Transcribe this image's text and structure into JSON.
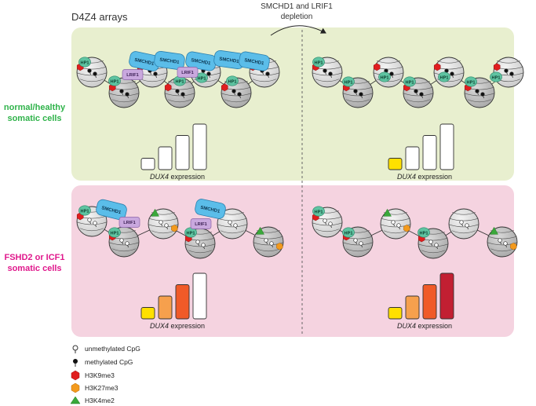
{
  "header": {
    "title": "D4Z4 arrays",
    "arrow_line1": "SMCHD1 and LRIF1",
    "arrow_line2": "depletion"
  },
  "rows": {
    "healthy_line1": "normal/healthy",
    "healthy_line2": "somatic cells",
    "disease_line1": "FSHD2 or ICF1",
    "disease_line2": "somatic cells"
  },
  "proteins": {
    "hp1": "HP1",
    "smchd1": "SMCHD1",
    "lrif1": "LRIF1"
  },
  "expression": {
    "gene": "DUX4",
    "suffix": " expression"
  },
  "legend": {
    "unmethylated": "unmethylated CpG",
    "methylated": "methylated CpG",
    "h3k9me3": "H3K9me3",
    "h3k27me3": "H3K27me3",
    "h3k4me2": "H3K4me2"
  },
  "colors": {
    "healthy_panel": "#e8efcf",
    "disease_panel": "#f5d3e0",
    "healthy_text": "#2fb34a",
    "disease_text": "#e0188c",
    "hp1": "#5fc4a2",
    "smchd1": "#5bbde9",
    "lrif1": "#c9a8de",
    "h3k9me3": "#e01e1e",
    "h3k27me3": "#f39a1d",
    "h3k4me2": "#3aa83a"
  },
  "bar_panels": [
    {
      "id": "healthy-normal",
      "levels": [
        1,
        2,
        3,
        4
      ],
      "fills": [
        "#ffffff",
        "#ffffff",
        "#ffffff",
        "#ffffff"
      ]
    },
    {
      "id": "healthy-depleted",
      "levels": [
        1,
        2,
        3,
        4
      ],
      "fills": [
        "#ffe000",
        "#ffffff",
        "#ffffff",
        "#ffffff"
      ]
    },
    {
      "id": "disease-normal",
      "levels": [
        1,
        2,
        3,
        4
      ],
      "fills": [
        "#ffe000",
        "#f6a04d",
        "#f05a28",
        "#ffffff"
      ]
    },
    {
      "id": "disease-depleted",
      "levels": [
        1,
        2,
        3,
        4
      ],
      "fills": [
        "#ffe000",
        "#f6a04d",
        "#f05a28",
        "#c21f32"
      ]
    }
  ]
}
